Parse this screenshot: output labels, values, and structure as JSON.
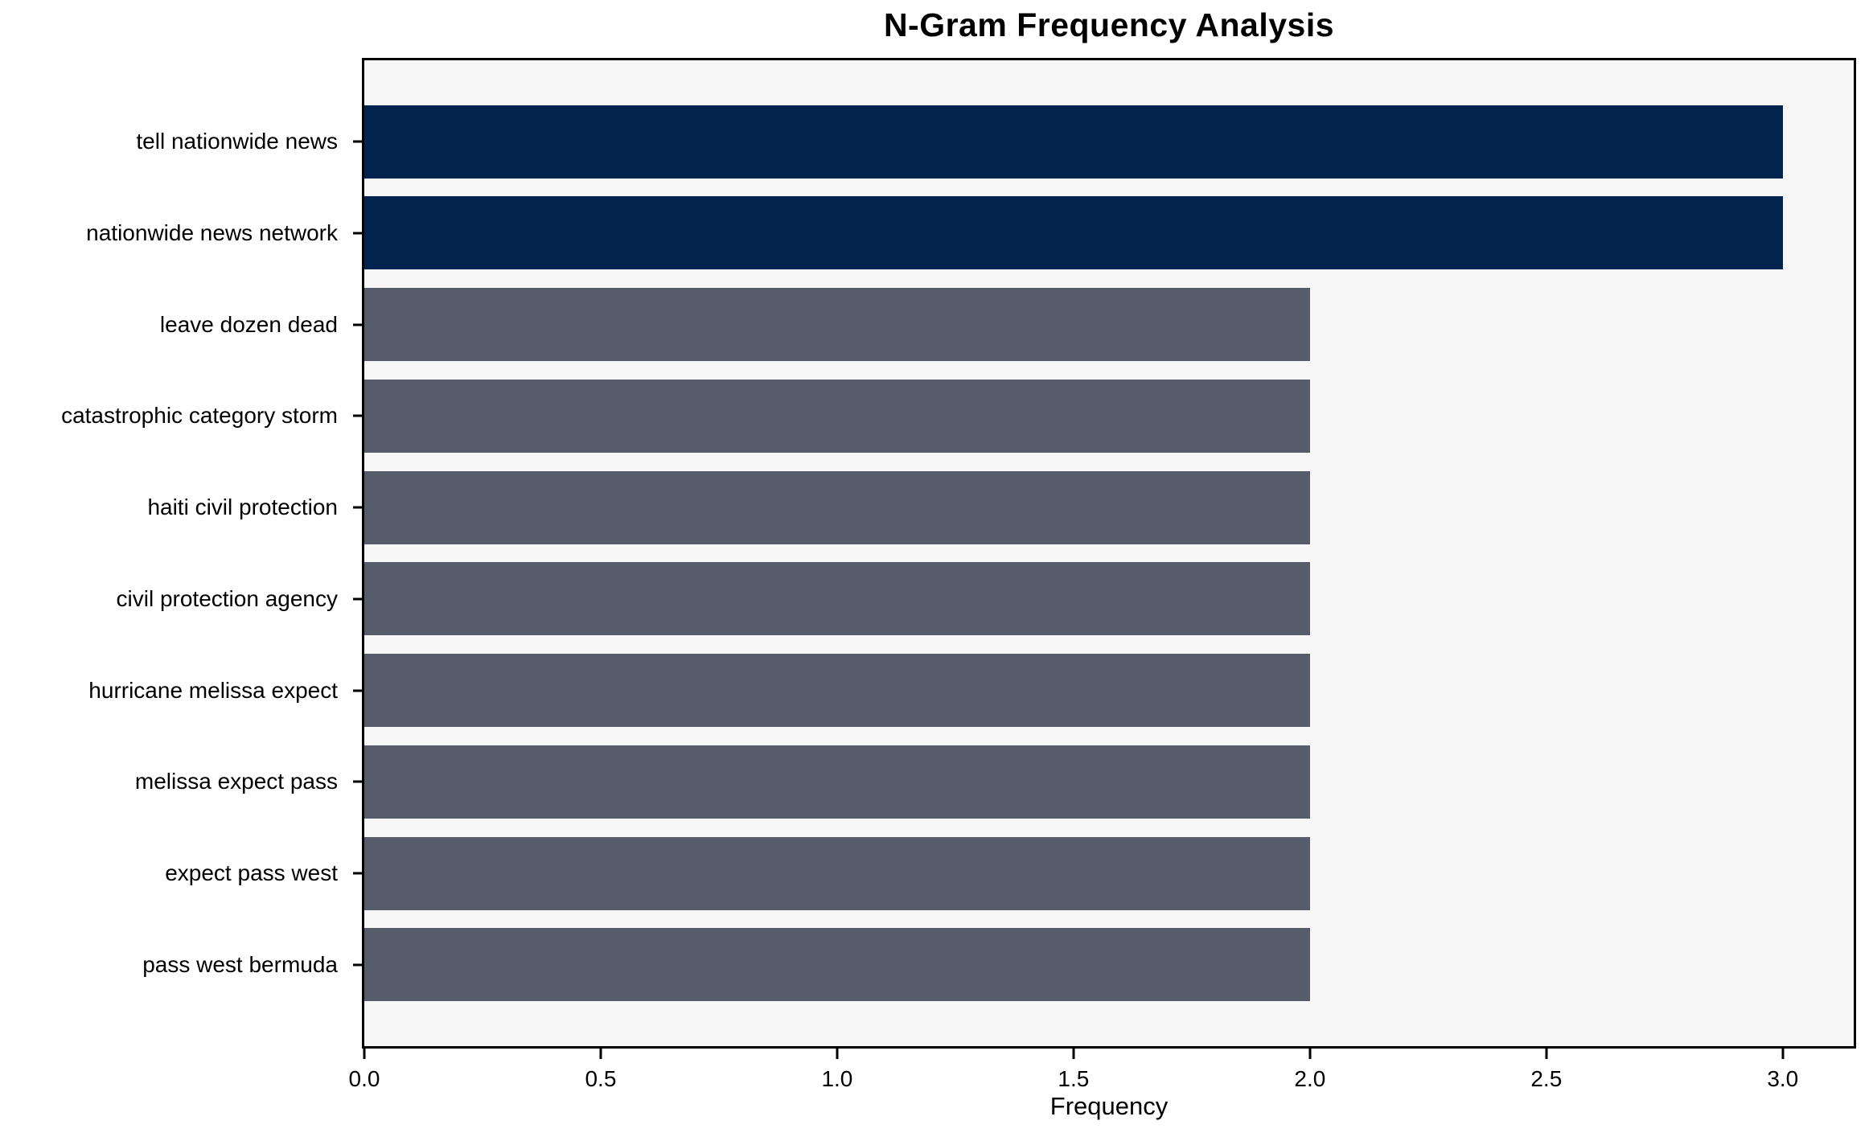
{
  "chart_data": {
    "type": "bar",
    "orientation": "horizontal",
    "title": "N-Gram Frequency Analysis",
    "xlabel": "Frequency",
    "ylabel": "",
    "categories": [
      "tell nationwide news",
      "nationwide news network",
      "leave dozen dead",
      "catastrophic category storm",
      "haiti civil protection",
      "civil protection agency",
      "hurricane melissa expect",
      "melissa expect pass",
      "expect pass west",
      "pass west bermuda"
    ],
    "values": [
      3,
      3,
      2,
      2,
      2,
      2,
      2,
      2,
      2,
      2
    ],
    "bar_colors": [
      "#02234e",
      "#02234e",
      "#575c6b",
      "#575c6b",
      "#575c6b",
      "#575c6b",
      "#575c6b",
      "#575c6b",
      "#575c6b",
      "#575c6b"
    ],
    "xlim": [
      0,
      3.15
    ],
    "xticks": [
      0,
      0.5,
      1,
      1.5,
      2,
      2.5,
      3
    ],
    "xtick_labels": [
      "0.0",
      "0.5",
      "1.0",
      "1.5",
      "2.0",
      "2.5",
      "3.0"
    ],
    "grid": false,
    "legend": null,
    "bar_height_frac": 0.8,
    "colors": {
      "highlight_bar": "#02234e",
      "default_bar": "#575c6b",
      "plot_background": "#f6f6f7",
      "page_background": "#ffffff",
      "spine": "#000000",
      "text": "#000000"
    }
  }
}
